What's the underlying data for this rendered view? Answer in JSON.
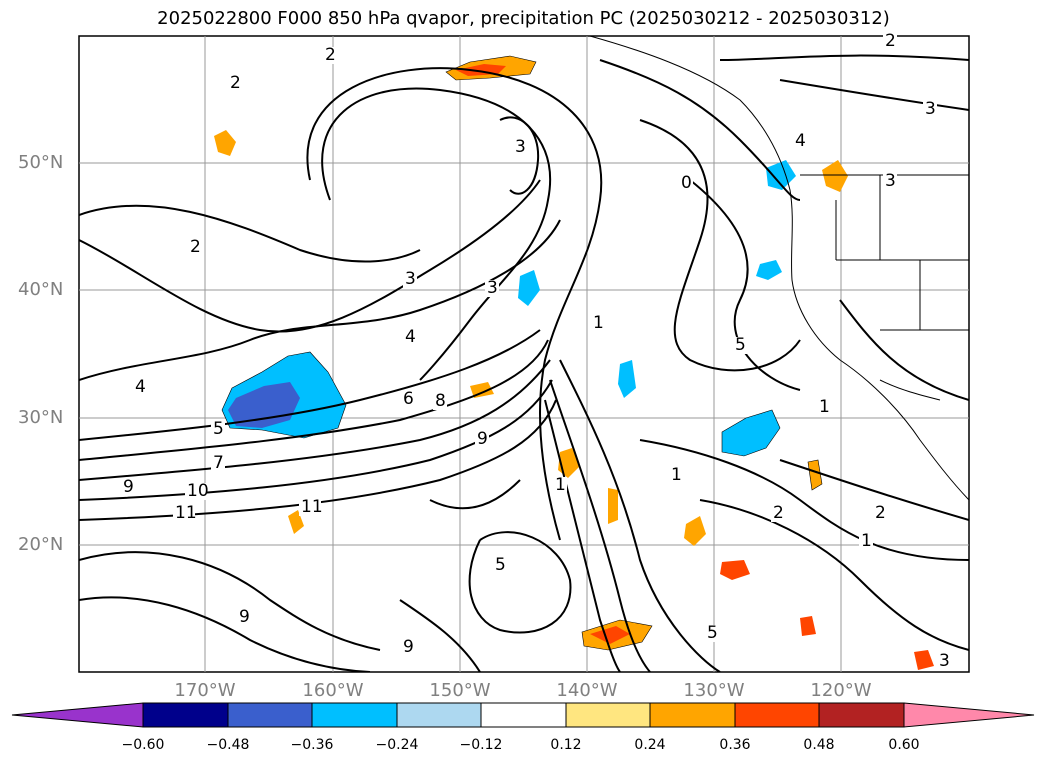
{
  "title": "2025022800 F000 850 hPa qvapor, precipitation PC (2025030212 - 2025030312)",
  "axes": {
    "lat_labels": [
      "50°N",
      "40°N",
      "30°N",
      "20°N"
    ],
    "lon_labels": [
      "170°W",
      "160°W",
      "150°W",
      "140°W",
      "130°W",
      "120°W"
    ]
  },
  "contour_labels": [
    "2",
    "2",
    "2",
    "2",
    "3",
    "3",
    "3",
    "3",
    "3",
    "4",
    "4",
    "4",
    "5",
    "5",
    "6",
    "7",
    "8",
    "9",
    "9",
    "10",
    "11",
    "11",
    "1",
    "1",
    "1",
    "1",
    "1",
    "2",
    "2",
    "5",
    "9",
    "9",
    "0",
    "5",
    "3"
  ],
  "colorbar": {
    "ticks": [
      "−0.60",
      "−0.48",
      "−0.36",
      "−0.24",
      "−0.12",
      "0.12",
      "0.24",
      "0.36",
      "0.48",
      "0.60"
    ],
    "colors": [
      "#9933cc",
      "#00008b",
      "#3a5fcd",
      "#00bfff",
      "#add8f0",
      "#ffffff",
      "#ffe680",
      "#ffa500",
      "#ff4500",
      "#b22222",
      "#ff88aa"
    ]
  }
}
